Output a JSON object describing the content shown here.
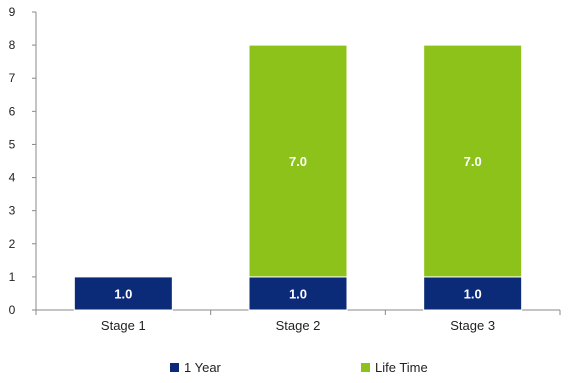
{
  "chart_data": {
    "type": "bar",
    "stacked": true,
    "categories": [
      "Stage 1",
      "Stage 2",
      "Stage 3"
    ],
    "series": [
      {
        "name": "1 Year",
        "values": [
          1.0,
          1.0,
          1.0
        ],
        "labels": [
          "1.0",
          "1.0",
          "1.0"
        ],
        "color": "#0b2a78"
      },
      {
        "name": "Life Time",
        "values": [
          0,
          7.0,
          7.0
        ],
        "labels": [
          "",
          "7.0",
          "7.0"
        ],
        "color": "#8cc21a"
      }
    ],
    "yticks": [
      "0",
      "1",
      "2",
      "3",
      "4",
      "5",
      "6",
      "7",
      "8",
      "9"
    ],
    "ylim": [
      0,
      9
    ],
    "grid": false,
    "legend": "bottom"
  }
}
